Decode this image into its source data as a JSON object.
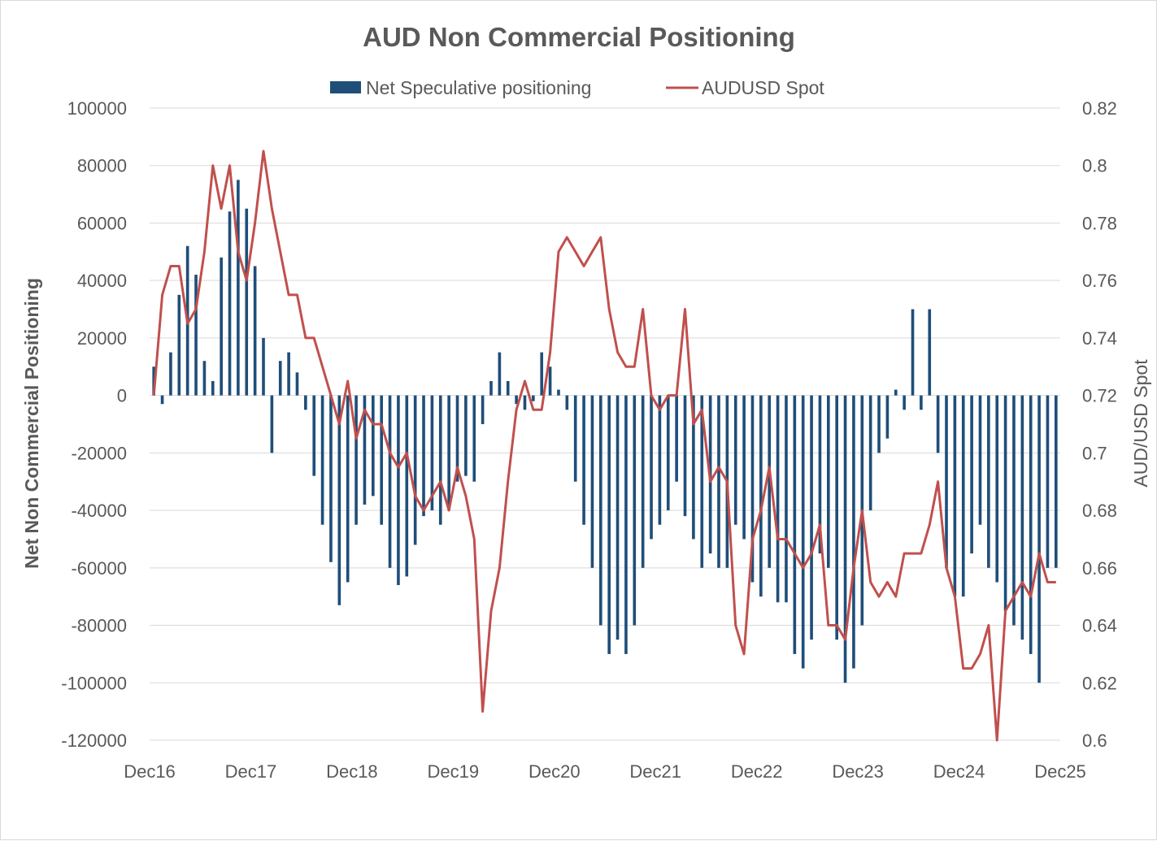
{
  "chart_data": {
    "type": "bar",
    "title": "AUD Non Commercial Positioning",
    "ylabel": "Net Non Commercial Positioning",
    "y2label": "AUD/USD Spot",
    "ylim": [
      -120000,
      100000
    ],
    "y2lim": [
      0.6,
      0.82
    ],
    "yticks": [
      "100000",
      "80000",
      "60000",
      "40000",
      "20000",
      "0",
      "-20000",
      "-40000",
      "-60000",
      "-80000",
      "-100000",
      "-120000"
    ],
    "y2ticks": [
      "0.82",
      "0.8",
      "0.78",
      "0.76",
      "0.74",
      "0.72",
      "0.7",
      "0.68",
      "0.66",
      "0.64",
      "0.62",
      "0.6"
    ],
    "xticks": [
      "Dec16",
      "Dec17",
      "Dec18",
      "Dec19",
      "Dec20",
      "Dec21",
      "Dec22",
      "Dec23",
      "Dec24",
      "Dec25"
    ],
    "xlim": [
      "2016-12",
      "2025-12"
    ],
    "grid": true,
    "legend_position": "top",
    "colors": {
      "bars": "#1f4e79",
      "line": "#c0504d",
      "grid": "#d9d9d9",
      "text": "#595959"
    },
    "series": [
      {
        "name": "Net Speculative positioning",
        "type": "bar",
        "axis": "left",
        "x": [
          "2016-12",
          "2017-01",
          "2017-02",
          "2017-03",
          "2017-04",
          "2017-05",
          "2017-06",
          "2017-07",
          "2017-08",
          "2017-09",
          "2017-10",
          "2017-11",
          "2017-12",
          "2018-01",
          "2018-02",
          "2018-03",
          "2018-04",
          "2018-05",
          "2018-06",
          "2018-07",
          "2018-08",
          "2018-09",
          "2018-10",
          "2018-11",
          "2018-12",
          "2019-01",
          "2019-02",
          "2019-03",
          "2019-04",
          "2019-05",
          "2019-06",
          "2019-07",
          "2019-08",
          "2019-09",
          "2019-10",
          "2019-11",
          "2019-12",
          "2020-01",
          "2020-02",
          "2020-03",
          "2020-04",
          "2020-05",
          "2020-06",
          "2020-07",
          "2020-08",
          "2020-09",
          "2020-10",
          "2020-11",
          "2020-12",
          "2021-01",
          "2021-02",
          "2021-03",
          "2021-04",
          "2021-05",
          "2021-06",
          "2021-07",
          "2021-08",
          "2021-09",
          "2021-10",
          "2021-11",
          "2021-12",
          "2022-01",
          "2022-02",
          "2022-03",
          "2022-04",
          "2022-05",
          "2022-06",
          "2022-07",
          "2022-08",
          "2022-09",
          "2022-10",
          "2022-11",
          "2022-12",
          "2023-01",
          "2023-02",
          "2023-03",
          "2023-04",
          "2023-05",
          "2023-06",
          "2023-07",
          "2023-08",
          "2023-09",
          "2023-10",
          "2023-11",
          "2023-12",
          "2024-01",
          "2024-02",
          "2024-03",
          "2024-04",
          "2024-05",
          "2024-06",
          "2024-07",
          "2024-08",
          "2024-09",
          "2024-10",
          "2024-11",
          "2024-12",
          "2025-01",
          "2025-02",
          "2025-03",
          "2025-04",
          "2025-05",
          "2025-06",
          "2025-07",
          "2025-08",
          "2025-09",
          "2025-10",
          "2025-11"
        ],
        "values": [
          10000,
          -3000,
          15000,
          35000,
          52000,
          42000,
          12000,
          5000,
          48000,
          64000,
          75000,
          65000,
          45000,
          20000,
          -20000,
          12000,
          15000,
          8000,
          -5000,
          -28000,
          -45000,
          -58000,
          -73000,
          -65000,
          -45000,
          -38000,
          -35000,
          -45000,
          -60000,
          -66000,
          -63000,
          -52000,
          -42000,
          -40000,
          -45000,
          -40000,
          -30000,
          -28000,
          -30000,
          -10000,
          5000,
          15000,
          5000,
          -3000,
          -5000,
          -2000,
          15000,
          10000,
          2000,
          -5000,
          -30000,
          -45000,
          -60000,
          -80000,
          -90000,
          -85000,
          -90000,
          -80000,
          -60000,
          -50000,
          -45000,
          -40000,
          -30000,
          -42000,
          -50000,
          -60000,
          -55000,
          -60000,
          -60000,
          -45000,
          -50000,
          -65000,
          -70000,
          -60000,
          -72000,
          -72000,
          -90000,
          -95000,
          -85000,
          -55000,
          -60000,
          -85000,
          -100000,
          -95000,
          -80000,
          -40000,
          -20000,
          -15000,
          2000,
          -5000,
          30000,
          -5000,
          30000,
          -20000,
          -60000,
          -70000,
          -70000,
          -55000,
          -45000,
          -60000,
          -65000,
          -75000,
          -80000,
          -85000,
          -90000,
          -100000,
          -60000,
          -60000
        ],
        "values_note_removed": true
      },
      {
        "name": "AUDUSD Spot",
        "type": "line",
        "axis": "right",
        "x": [
          "2016-12",
          "2017-01",
          "2017-02",
          "2017-03",
          "2017-04",
          "2017-05",
          "2017-06",
          "2017-07",
          "2017-08",
          "2017-09",
          "2017-10",
          "2017-11",
          "2017-12",
          "2018-01",
          "2018-02",
          "2018-03",
          "2018-04",
          "2018-05",
          "2018-06",
          "2018-07",
          "2018-08",
          "2018-09",
          "2018-10",
          "2018-11",
          "2018-12",
          "2019-01",
          "2019-02",
          "2019-03",
          "2019-04",
          "2019-05",
          "2019-06",
          "2019-07",
          "2019-08",
          "2019-09",
          "2019-10",
          "2019-11",
          "2019-12",
          "2020-01",
          "2020-02",
          "2020-03",
          "2020-04",
          "2020-05",
          "2020-06",
          "2020-07",
          "2020-08",
          "2020-09",
          "2020-10",
          "2020-11",
          "2020-12",
          "2021-01",
          "2021-02",
          "2021-03",
          "2021-04",
          "2021-05",
          "2021-06",
          "2021-07",
          "2021-08",
          "2021-09",
          "2021-10",
          "2021-11",
          "2021-12",
          "2022-01",
          "2022-02",
          "2022-03",
          "2022-04",
          "2022-05",
          "2022-06",
          "2022-07",
          "2022-08",
          "2022-09",
          "2022-10",
          "2022-11",
          "2022-12",
          "2023-01",
          "2023-02",
          "2023-03",
          "2023-04",
          "2023-05",
          "2023-06",
          "2023-07",
          "2023-08",
          "2023-09",
          "2023-10",
          "2023-11",
          "2023-12",
          "2024-01",
          "2024-02",
          "2024-03",
          "2024-04",
          "2024-05",
          "2024-06",
          "2024-07",
          "2024-08",
          "2024-09",
          "2024-10",
          "2024-11",
          "2024-12",
          "2025-01",
          "2025-02",
          "2025-03",
          "2025-04",
          "2025-05",
          "2025-06",
          "2025-07",
          "2025-08",
          "2025-09",
          "2025-10",
          "2025-11"
        ],
        "values": [
          0.72,
          0.755,
          0.765,
          0.765,
          0.745,
          0.75,
          0.77,
          0.8,
          0.785,
          0.8,
          0.77,
          0.76,
          0.78,
          0.805,
          0.785,
          0.77,
          0.755,
          0.755,
          0.74,
          0.74,
          0.73,
          0.72,
          0.71,
          0.725,
          0.705,
          0.715,
          0.71,
          0.71,
          0.7,
          0.695,
          0.7,
          0.685,
          0.68,
          0.685,
          0.69,
          0.68,
          0.695,
          0.685,
          0.67,
          0.61,
          0.645,
          0.66,
          0.69,
          0.715,
          0.725,
          0.715,
          0.715,
          0.735,
          0.77,
          0.775,
          0.77,
          0.765,
          0.77,
          0.775,
          0.75,
          0.735,
          0.73,
          0.73,
          0.75,
          0.72,
          0.715,
          0.72,
          0.72,
          0.75,
          0.71,
          0.715,
          0.69,
          0.695,
          0.69,
          0.64,
          0.63,
          0.67,
          0.68,
          0.695,
          0.67,
          0.67,
          0.665,
          0.66,
          0.665,
          0.675,
          0.64,
          0.64,
          0.635,
          0.66,
          0.68,
          0.655,
          0.65,
          0.655,
          0.65,
          0.665,
          0.665,
          0.665,
          0.675,
          0.69,
          0.66,
          0.65,
          0.625,
          0.625,
          0.63,
          0.64,
          0.6,
          0.645,
          0.65,
          0.655,
          0.65,
          0.665,
          0.655,
          0.655
        ],
        "values_note_removed": true
      }
    ]
  }
}
